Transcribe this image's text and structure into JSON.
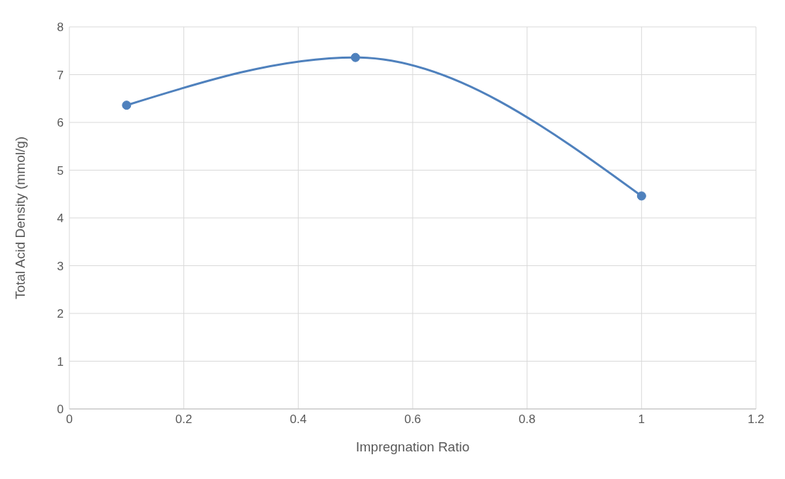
{
  "chart_data": {
    "type": "line",
    "xlabel": "Impregnation Ratio",
    "ylabel": "Total Acid Density (mmol/g)",
    "x": [
      0.1,
      0.5,
      1
    ],
    "values": [
      6.36,
      7.36,
      4.46
    ],
    "color": "#4f81bd",
    "xlim": [
      0,
      1.2
    ],
    "xticks": [
      0,
      0.2,
      0.4,
      0.6,
      0.8,
      1,
      1.2
    ],
    "ylim": [
      0,
      8
    ],
    "yticks": [
      0,
      1,
      2,
      3,
      4,
      5,
      6,
      7,
      8
    ],
    "grid": true,
    "marker": "circle",
    "line_style": "solid"
  }
}
